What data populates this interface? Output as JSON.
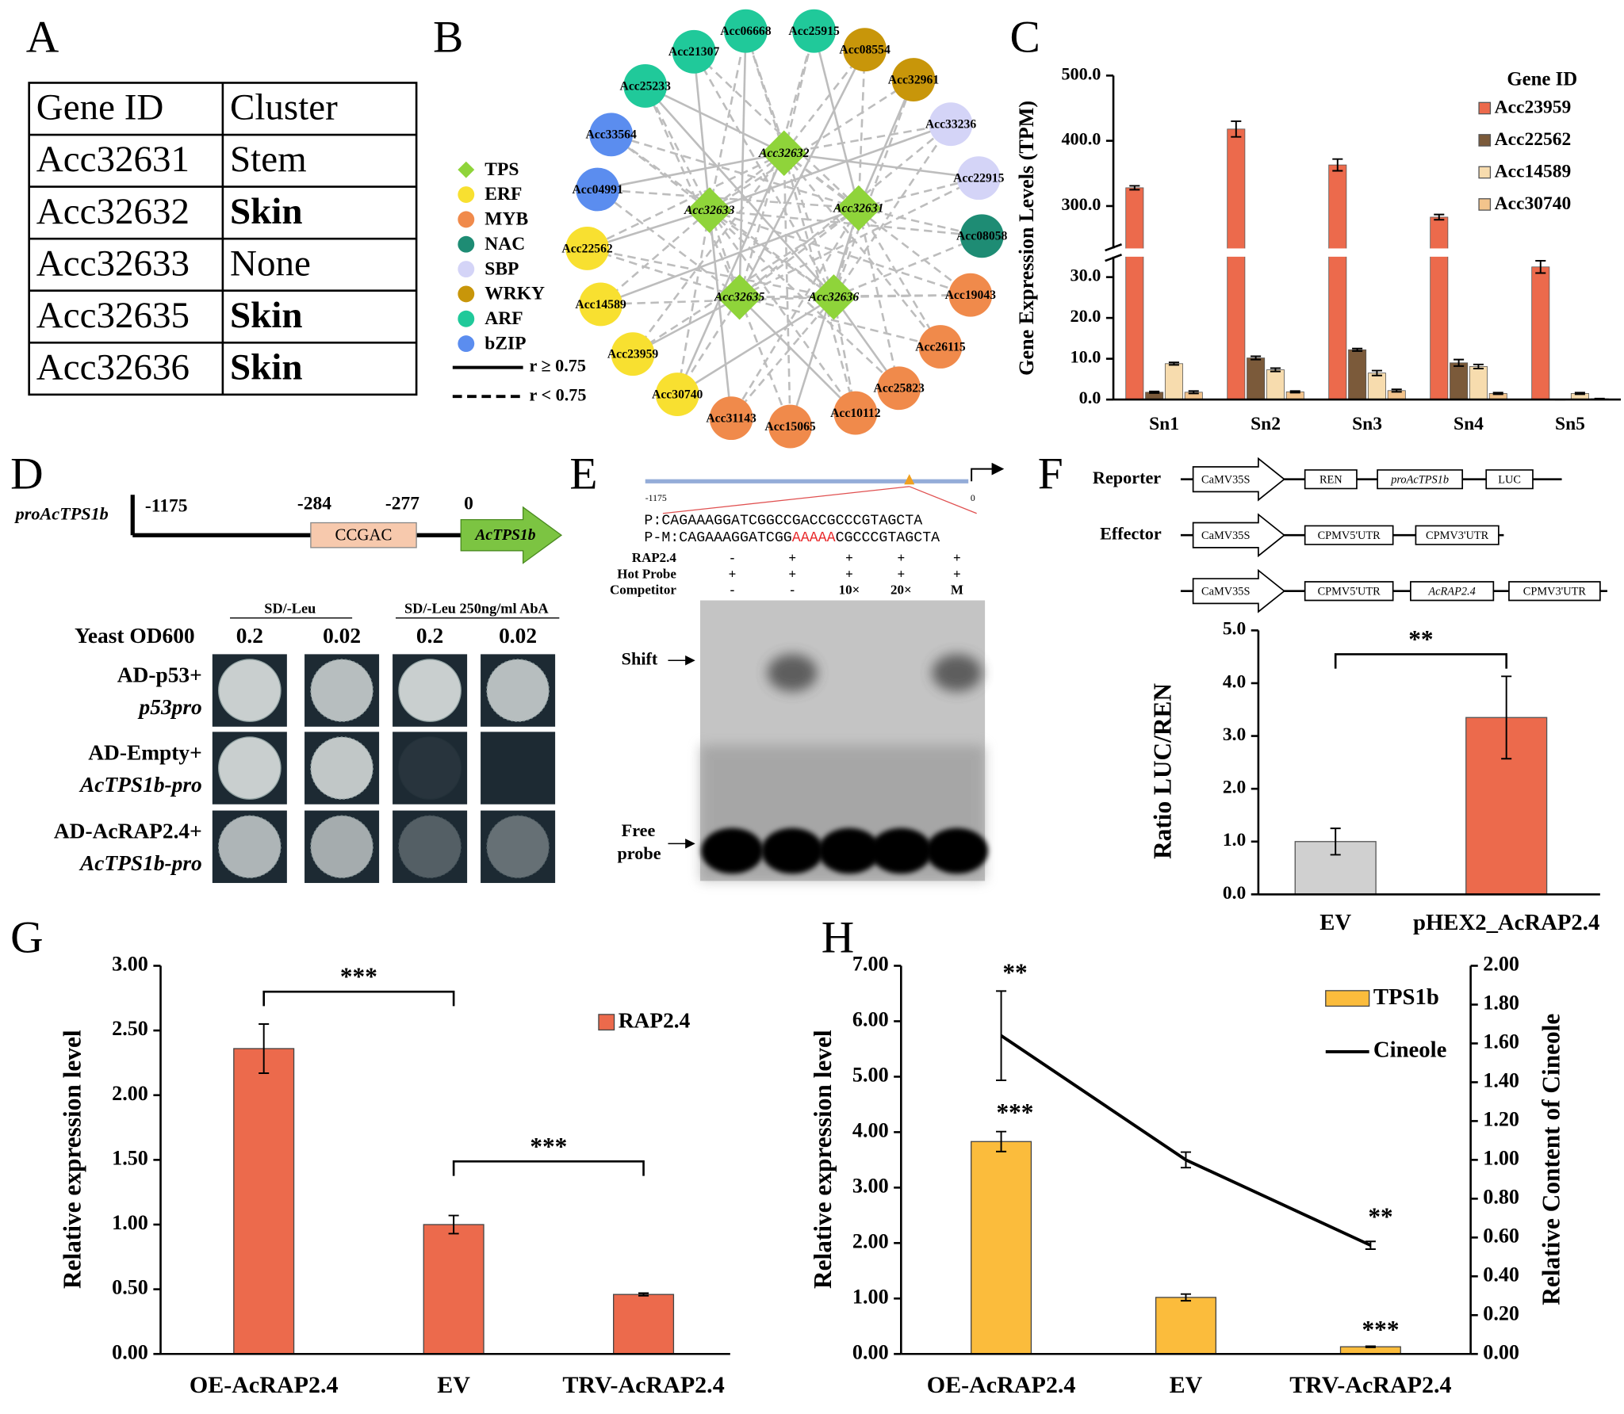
{
  "panel_labels": [
    "A",
    "B",
    "C",
    "D",
    "E",
    "F",
    "G",
    "H"
  ],
  "table": {
    "header": [
      "Gene ID",
      "Cluster"
    ],
    "rows": [
      [
        "Acc32631",
        "Stem"
      ],
      [
        "Acc32632",
        "Skin"
      ],
      [
        "Acc32633",
        "None"
      ],
      [
        "Acc32635",
        "Skin"
      ],
      [
        "Acc32636",
        "Skin"
      ]
    ],
    "bold": [
      false,
      true,
      false,
      true,
      true
    ]
  },
  "network": {
    "legend": [
      {
        "name": "TPS",
        "color": "#8fd43a",
        "shape": "diamond"
      },
      {
        "name": "ERF",
        "color": "#f8e030",
        "shape": "circle"
      },
      {
        "name": "MYB",
        "color": "#f08a4b",
        "shape": "circle"
      },
      {
        "name": "NAC",
        "color": "#1e8c74",
        "shape": "circle"
      },
      {
        "name": "SBP",
        "color": "#d4d4f7",
        "shape": "circle"
      },
      {
        "name": "WRKY",
        "color": "#c8960a",
        "shape": "circle"
      },
      {
        "name": "ARF",
        "color": "#20c99a",
        "shape": "circle"
      },
      {
        "name": "bZIP",
        "color": "#5b8def",
        "shape": "circle"
      }
    ],
    "edge_legend": [
      {
        "label": "r ≥ 0.75",
        "style": "solid"
      },
      {
        "label": "r < 0.75",
        "style": "dashed"
      }
    ],
    "nodes": [
      {
        "label": "Acc32632",
        "type": "TPS"
      },
      {
        "label": "Acc32633",
        "type": "TPS"
      },
      {
        "label": "Acc32631",
        "type": "TPS"
      },
      {
        "label": "Acc32635",
        "type": "TPS"
      },
      {
        "label": "Acc32636",
        "type": "TPS"
      },
      {
        "label": "Acc06668",
        "type": "ARF"
      },
      {
        "label": "Acc25915",
        "type": "ARF"
      },
      {
        "label": "Acc21307",
        "type": "ARF"
      },
      {
        "label": "Acc25233",
        "type": "ARF"
      },
      {
        "label": "Acc08554",
        "type": "WRKY"
      },
      {
        "label": "Acc32961",
        "type": "WRKY"
      },
      {
        "label": "Acc33236",
        "type": "SBP"
      },
      {
        "label": "Acc22915",
        "type": "SBP"
      },
      {
        "label": "Acc08058",
        "type": "NAC"
      },
      {
        "label": "Acc19043",
        "type": "MYB"
      },
      {
        "label": "Acc26115",
        "type": "MYB"
      },
      {
        "label": "Acc25823",
        "type": "MYB"
      },
      {
        "label": "Acc10112",
        "type": "MYB"
      },
      {
        "label": "Acc15065",
        "type": "MYB"
      },
      {
        "label": "Acc31143",
        "type": "MYB"
      },
      {
        "label": "Acc30740",
        "type": "ERF"
      },
      {
        "label": "Acc23959",
        "type": "ERF"
      },
      {
        "label": "Acc14589",
        "type": "ERF"
      },
      {
        "label": "Acc22562",
        "type": "ERF"
      },
      {
        "label": "Acc04991",
        "type": "bZIP"
      },
      {
        "label": "Acc33564",
        "type": "bZIP"
      }
    ]
  },
  "promoter": {
    "name": "proAcTPS1b",
    "positions": [
      "-1175",
      "-284",
      "-277",
      "0"
    ],
    "element": "CCGAC",
    "gene": "AcTPS1b"
  },
  "y1h": {
    "media": [
      "SD/-Leu",
      "SD/-Leu 250ng/ml AbA"
    ],
    "od_label": "Yeast OD600",
    "ods": [
      "0.2",
      "0.02",
      "0.2",
      "0.02"
    ],
    "rows": [
      [
        "AD-p53+",
        "p53pro"
      ],
      [
        "AD-Empty+",
        "AcTPS1b-pro"
      ],
      [
        "AD-AcRAP2.4+",
        "AcTPS1b-pro"
      ]
    ]
  },
  "emsa": {
    "map_start": "-1175",
    "map_end": "0",
    "probe": "P:CAGAAAGGATCGGCCGACCGCCCGTAGCTA",
    "mutant": [
      "P-M:CAGAAAGGATCGG",
      "AAAAA",
      "CGCCCGTAGCTA"
    ],
    "mutation_color": "#e8282a",
    "rows": [
      {
        "label": "RAP2.4",
        "cells": [
          "-",
          "+",
          "+",
          "+",
          "+"
        ]
      },
      {
        "label": "Hot Probe",
        "cells": [
          "+",
          "+",
          "+",
          "+",
          "+"
        ]
      },
      {
        "label": "Competitor",
        "cells": [
          "-",
          "-",
          "10×",
          "20×",
          "M"
        ]
      }
    ],
    "shift": "Shift",
    "free": [
      "Free",
      "probe"
    ]
  },
  "constructs": {
    "reporter_label": "Reporter",
    "effector_label": "Effector",
    "reporter": [
      "CaMV35S",
      "REN",
      "proAcTPS1b",
      "LUC"
    ],
    "effectors": [
      [
        "CaMV35S",
        "CPMV5'UTR",
        "CPMV3'UTR"
      ],
      [
        "CaMV35S",
        "CPMV5'UTR",
        "AcRAP2.4",
        "CPMV3'UTR"
      ]
    ]
  },
  "chart_data": [
    {
      "type": "bar",
      "y_label": "Gene Expression Levels (TPM)",
      "legend_title": "Gene ID",
      "legend_position": "upper right",
      "categories": [
        "Sn1",
        "Sn2",
        "Sn3",
        "Sn4",
        "Sn5"
      ],
      "series": [
        {
          "name": "Acc23959",
          "color": "#ec6a4c",
          "values": [
            328,
            418,
            363,
            283,
            32.5
          ],
          "errors": [
            3,
            12,
            9,
            4,
            1.5
          ]
        },
        {
          "name": "Acc22562",
          "color": "#7b5a3a",
          "values": [
            1.8,
            10.2,
            12.2,
            9,
            0
          ],
          "errors": [
            0.2,
            0.4,
            0.3,
            0.8,
            0
          ]
        },
        {
          "name": "Acc14589",
          "color": "#f7dcae",
          "values": [
            8.8,
            7.3,
            6.5,
            8.1,
            1.5
          ],
          "errors": [
            0.3,
            0.4,
            0.6,
            0.5,
            0.2
          ]
        },
        {
          "name": "Acc30740",
          "color": "#f3c48c",
          "values": [
            1.8,
            1.9,
            2.2,
            1.5,
            0.2
          ],
          "errors": [
            0.3,
            0.2,
            0.3,
            0.2,
            0.05
          ]
        }
      ],
      "ylim": [
        0,
        500
      ],
      "y_break": [
        35,
        235
      ],
      "yticks": [
        {
          "value": 0,
          "label": "0.0"
        },
        {
          "value": 10,
          "label": "10.0"
        },
        {
          "value": 20,
          "label": "20.0"
        },
        {
          "value": 30,
          "label": "30.0"
        },
        {
          "value": 300,
          "label": "300.0"
        },
        {
          "value": 400,
          "label": "400.0"
        },
        {
          "value": 500,
          "label": "500.0"
        }
      ]
    },
    {
      "type": "bar",
      "y_label": "Ratio LUC/REN",
      "categories": [
        "EV",
        "pHEX2_AcRAP2.4"
      ],
      "values": [
        1.0,
        3.35
      ],
      "errors": [
        0.25,
        0.78
      ],
      "colors": [
        "#d0d0d0",
        "#ec6a4c"
      ],
      "ylim": [
        0,
        5
      ],
      "yticks": [
        {
          "value": 0,
          "label": "0.0"
        },
        {
          "value": 1,
          "label": "1.0"
        },
        {
          "value": 2,
          "label": "2.0"
        },
        {
          "value": 3,
          "label": "3.0"
        },
        {
          "value": 4,
          "label": "4.0"
        },
        {
          "value": 5,
          "label": "5.0"
        }
      ],
      "annotations": [
        {
          "text": "**",
          "between": [
            0,
            1
          ]
        }
      ]
    },
    {
      "type": "bar",
      "y_label": "Relative expression level",
      "categories": [
        "OE-AcRAP2.4",
        "EV",
        "TRV-AcRAP2.4"
      ],
      "series": [
        {
          "name": "RAP2.4",
          "color": "#ec6a4c",
          "values": [
            2.36,
            1.0,
            0.46
          ],
          "errors": [
            0.19,
            0.07,
            0.01
          ]
        }
      ],
      "ylim": [
        0,
        3
      ],
      "yticks": [
        {
          "value": 0,
          "label": "0.00"
        },
        {
          "value": 0.5,
          "label": "0.50"
        },
        {
          "value": 1,
          "label": "1.00"
        },
        {
          "value": 1.5,
          "label": "1.50"
        },
        {
          "value": 2,
          "label": "2.00"
        },
        {
          "value": 2.5,
          "label": "2.50"
        },
        {
          "value": 3,
          "label": "3.00"
        }
      ],
      "annotations": [
        {
          "text": "***",
          "between": [
            0,
            1
          ]
        },
        {
          "text": "***",
          "between": [
            1,
            2
          ]
        }
      ]
    },
    {
      "type": "bar_line",
      "y_label": "Relative expression level",
      "y2_label": "Relative Content of Cineole",
      "categories": [
        "OE-AcRAP2.4",
        "EV",
        "TRV-AcRAP2.4"
      ],
      "series": [
        {
          "name": "TPS1b",
          "type": "bar",
          "color": "#fbbc3c",
          "values": [
            3.83,
            1.02,
            0.13
          ],
          "errors": [
            0.18,
            0.06,
            0.01
          ]
        },
        {
          "name": "Cineole",
          "type": "line",
          "axis": "y2",
          "color": "#000000",
          "values": [
            1.64,
            1.0,
            0.56
          ],
          "errors": [
            0.23,
            0.04,
            0.02
          ]
        }
      ],
      "ylim": [
        0,
        7
      ],
      "yticks": [
        {
          "value": 0,
          "label": "0.00"
        },
        {
          "value": 1,
          "label": "1.00"
        },
        {
          "value": 2,
          "label": "2.00"
        },
        {
          "value": 3,
          "label": "3.00"
        },
        {
          "value": 4,
          "label": "4.00"
        },
        {
          "value": 5,
          "label": "5.00"
        },
        {
          "value": 6,
          "label": "6.00"
        },
        {
          "value": 7,
          "label": "7.00"
        }
      ],
      "y2lim": [
        0,
        2
      ],
      "y2ticks": [
        {
          "value": 0,
          "label": "0.00"
        },
        {
          "value": 0.2,
          "label": "0.20"
        },
        {
          "value": 0.4,
          "label": "0.40"
        },
        {
          "value": 0.6,
          "label": "0.60"
        },
        {
          "value": 0.8,
          "label": "0.80"
        },
        {
          "value": 1,
          "label": "1.00"
        },
        {
          "value": 1.2,
          "label": "1.20"
        },
        {
          "value": 1.4,
          "label": "1.40"
        },
        {
          "value": 1.6,
          "label": "1.60"
        },
        {
          "value": 1.8,
          "label": "1.80"
        },
        {
          "value": 2,
          "label": "2.00"
        }
      ],
      "annotations": [
        {
          "text": "**",
          "series": 1,
          "index": 0
        },
        {
          "text": "***",
          "series": 0,
          "index": 0
        },
        {
          "text": "**",
          "series": 1,
          "index": 2
        },
        {
          "text": "***",
          "series": 0,
          "index": 2
        }
      ]
    }
  ]
}
